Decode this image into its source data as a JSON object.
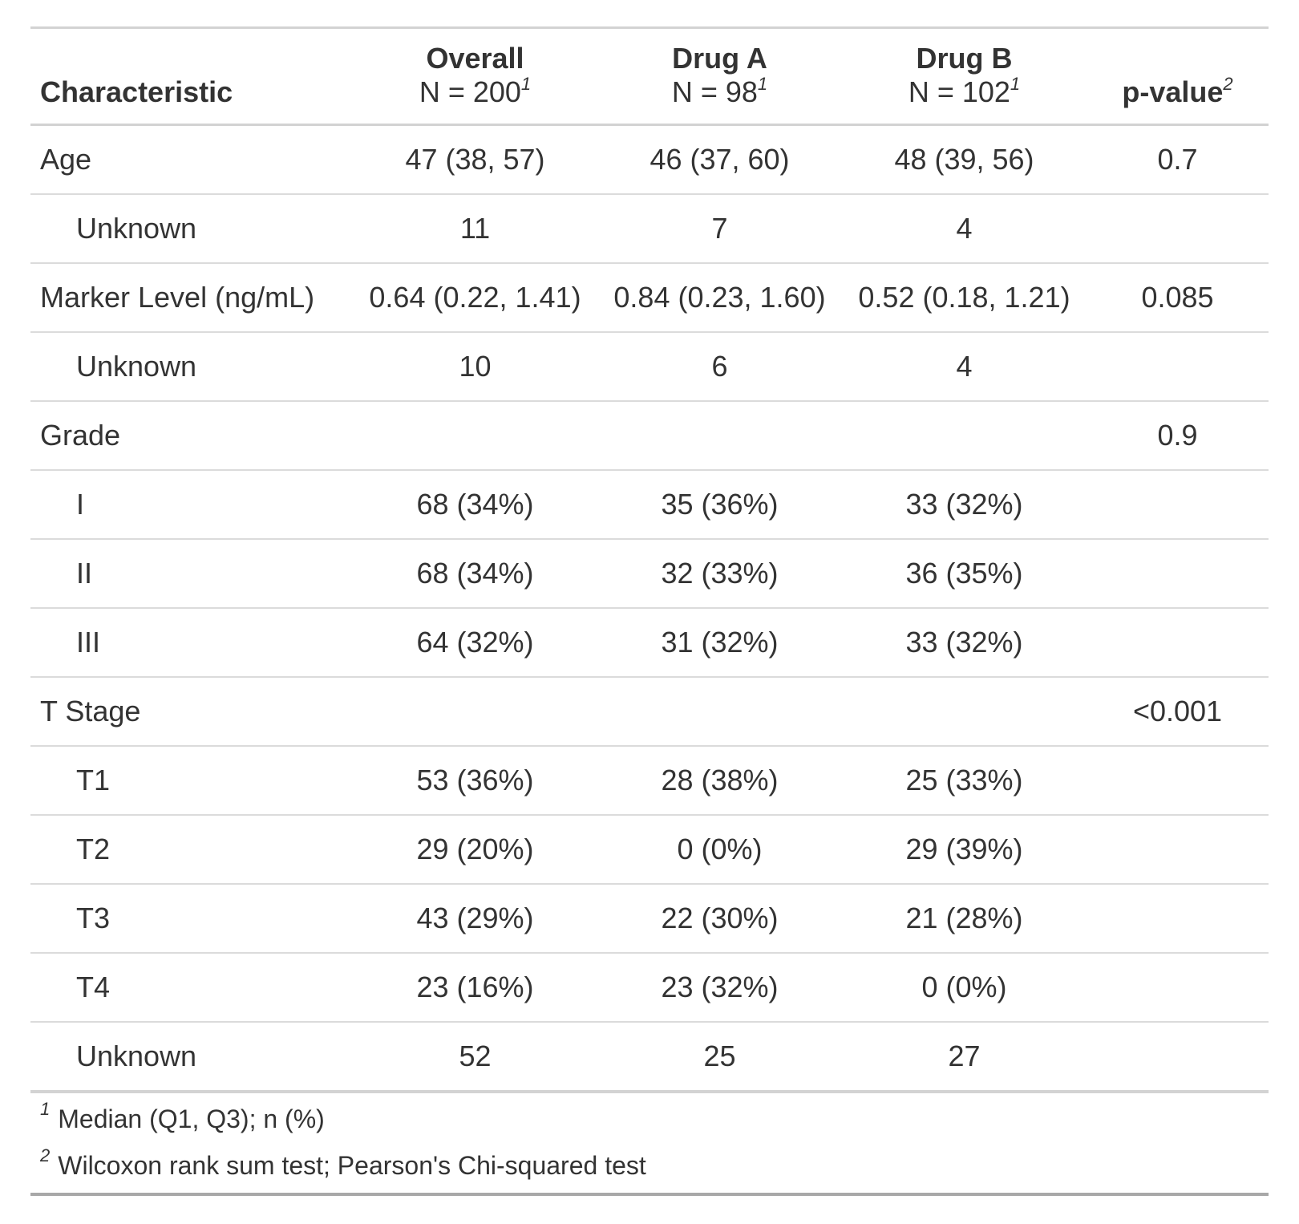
{
  "colors": {
    "text": "#333333",
    "border_light": "#D3D3D3",
    "border_dark": "#A8A8A8",
    "background": "#FFFFFF"
  },
  "chart_data": {
    "type": "table",
    "header": {
      "characteristic_label": "Characteristic",
      "groups": [
        {
          "label": "Overall",
          "n": "N = 200",
          "mark": "1"
        },
        {
          "label": "Drug A",
          "n": "N = 98",
          "mark": "1"
        },
        {
          "label": "Drug B",
          "n": "N = 102",
          "mark": "1"
        }
      ],
      "pvalue": {
        "label": "p-value",
        "mark": "2"
      }
    },
    "rows": [
      {
        "label": "Age",
        "indent": false,
        "overall": "47 (38, 57)",
        "drug_a": "46 (37, 60)",
        "drug_b": "48 (39, 56)",
        "p": "0.7"
      },
      {
        "label": "Unknown",
        "indent": true,
        "overall": "11",
        "drug_a": "7",
        "drug_b": "4",
        "p": ""
      },
      {
        "label": "Marker Level (ng/mL)",
        "indent": false,
        "overall": "0.64 (0.22, 1.41)",
        "drug_a": "0.84 (0.23, 1.60)",
        "drug_b": "0.52 (0.18, 1.21)",
        "p": "0.085"
      },
      {
        "label": "Unknown",
        "indent": true,
        "overall": "10",
        "drug_a": "6",
        "drug_b": "4",
        "p": ""
      },
      {
        "label": "Grade",
        "indent": false,
        "overall": "",
        "drug_a": "",
        "drug_b": "",
        "p": "0.9"
      },
      {
        "label": "I",
        "indent": true,
        "overall": "68 (34%)",
        "drug_a": "35 (36%)",
        "drug_b": "33 (32%)",
        "p": ""
      },
      {
        "label": "II",
        "indent": true,
        "overall": "68 (34%)",
        "drug_a": "32 (33%)",
        "drug_b": "36 (35%)",
        "p": ""
      },
      {
        "label": "III",
        "indent": true,
        "overall": "64 (32%)",
        "drug_a": "31 (32%)",
        "drug_b": "33 (32%)",
        "p": ""
      },
      {
        "label": "T Stage",
        "indent": false,
        "overall": "",
        "drug_a": "",
        "drug_b": "",
        "p": "<0.001"
      },
      {
        "label": "T1",
        "indent": true,
        "overall": "53 (36%)",
        "drug_a": "28 (38%)",
        "drug_b": "25 (33%)",
        "p": ""
      },
      {
        "label": "T2",
        "indent": true,
        "overall": "29 (20%)",
        "drug_a": "0 (0%)",
        "drug_b": "29 (39%)",
        "p": ""
      },
      {
        "label": "T3",
        "indent": true,
        "overall": "43 (29%)",
        "drug_a": "22 (30%)",
        "drug_b": "21 (28%)",
        "p": ""
      },
      {
        "label": "T4",
        "indent": true,
        "overall": "23 (16%)",
        "drug_a": "23 (32%)",
        "drug_b": "0 (0%)",
        "p": ""
      },
      {
        "label": "Unknown",
        "indent": true,
        "overall": "52",
        "drug_a": "25",
        "drug_b": "27",
        "p": ""
      }
    ],
    "footnotes": [
      {
        "mark": "1",
        "text": "Median (Q1, Q3); n (%)"
      },
      {
        "mark": "2",
        "text": "Wilcoxon rank sum test; Pearson's Chi-squared test"
      }
    ]
  }
}
